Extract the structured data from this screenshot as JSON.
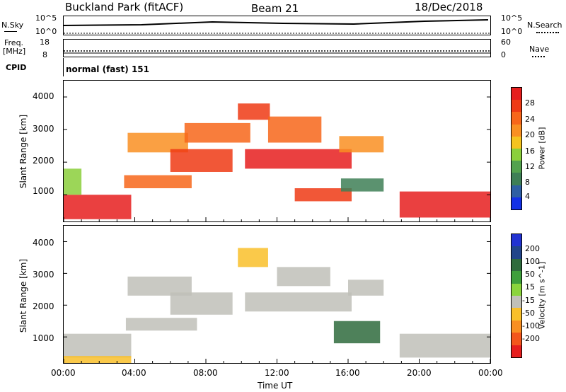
{
  "header": {
    "site": "Buckland Park (fitACF)",
    "beam": "Beam 21",
    "date": "18/Dec/2018"
  },
  "top_panels": {
    "nsky_label": "N.Sky",
    "nsky_ticks": [
      "10^5",
      "10^0"
    ],
    "nsearch_label": "N.Search",
    "nsearch_ticks": [
      "10^5",
      "10^0"
    ],
    "freq_label": "Freq.",
    "freq_unit": "[MHz]",
    "freq_ticks": [
      "18",
      "8"
    ],
    "nave_label": "Nave",
    "nave_ticks": [
      "60",
      "0"
    ],
    "cpid_label": "CPID",
    "cpid_value": "normal (fast) 151"
  },
  "colors": {
    "power": [
      "#e61e1e",
      "#ee3a14",
      "#f7661a",
      "#f98f22",
      "#f5c31f",
      "#8bcf3b",
      "#53a24e",
      "#3e7f56",
      "#2e5fa3",
      "#1230e6"
    ],
    "velocity": [
      "#2233d1",
      "#22458a",
      "#2f6b3d",
      "#3e9f3b",
      "#8ad43c",
      "#c0c0b8",
      "#f9c02a",
      "#f98f22",
      "#f3561c",
      "#e61e1e"
    ]
  },
  "chart_data": [
    {
      "type": "heatmap",
      "name": "power",
      "xlabel": "",
      "ylabel": "Slant Range [km]",
      "xlim": [
        0,
        24
      ],
      "ylim": [
        180,
        4500
      ],
      "yticks": [
        "1000",
        "2000",
        "3000",
        "4000"
      ],
      "colorbar_label": "Power [dB]",
      "colorbar_ticks": [
        "28",
        "24",
        "20",
        "16",
        "12",
        "8",
        "4"
      ],
      "regions": [
        {
          "t0": 0.0,
          "t1": 3.8,
          "r0": 250,
          "r1": 1000,
          "level": 0
        },
        {
          "t0": 0.0,
          "t1": 1.0,
          "r0": 1000,
          "r1": 1800,
          "level": 5
        },
        {
          "t0": 3.4,
          "t1": 7.2,
          "r0": 1200,
          "r1": 1600,
          "level": 2
        },
        {
          "t0": 3.6,
          "t1": 7.0,
          "r0": 2300,
          "r1": 2900,
          "level": 3
        },
        {
          "t0": 6.0,
          "t1": 9.5,
          "r0": 1700,
          "r1": 2400,
          "level": 1
        },
        {
          "t0": 6.8,
          "t1": 10.5,
          "r0": 2600,
          "r1": 3200,
          "level": 2
        },
        {
          "t0": 9.8,
          "t1": 11.6,
          "r0": 3300,
          "r1": 3800,
          "level": 1
        },
        {
          "t0": 10.2,
          "t1": 16.2,
          "r0": 1800,
          "r1": 2400,
          "level": 0
        },
        {
          "t0": 11.5,
          "t1": 14.5,
          "r0": 2600,
          "r1": 3400,
          "level": 2
        },
        {
          "t0": 13.0,
          "t1": 16.2,
          "r0": 800,
          "r1": 1200,
          "level": 1
        },
        {
          "t0": 15.6,
          "t1": 18.0,
          "r0": 1100,
          "r1": 1500,
          "level": 7
        },
        {
          "t0": 15.5,
          "t1": 18.0,
          "r0": 2300,
          "r1": 2800,
          "level": 3
        },
        {
          "t0": 18.9,
          "t1": 24.0,
          "r0": 300,
          "r1": 1100,
          "level": 0
        }
      ]
    },
    {
      "type": "heatmap",
      "name": "velocity",
      "xlabel": "Time UT",
      "ylabel": "Slant Range [km]",
      "xlim": [
        0,
        24
      ],
      "ylim": [
        180,
        4500
      ],
      "xticks": [
        "00:00",
        "04:00",
        "08:00",
        "12:00",
        "16:00",
        "20:00",
        "00:00"
      ],
      "yticks": [
        "1000",
        "2000",
        "3000",
        "4000"
      ],
      "colorbar_label": "Velocity [m s^-1]",
      "colorbar_ticks": [
        "200",
        "100",
        "50",
        "15",
        "-15",
        "-50",
        "-100",
        "-200"
      ],
      "regions": [
        {
          "t0": 0.0,
          "t1": 3.8,
          "r0": 350,
          "r1": 1100,
          "level": 5
        },
        {
          "t0": 0.0,
          "t1": 3.8,
          "r0": 180,
          "r1": 400,
          "level": 6
        },
        {
          "t0": 3.5,
          "t1": 7.5,
          "r0": 1200,
          "r1": 1600,
          "level": 5
        },
        {
          "t0": 3.6,
          "t1": 7.2,
          "r0": 2300,
          "r1": 2900,
          "level": 5
        },
        {
          "t0": 6.0,
          "t1": 9.5,
          "r0": 1700,
          "r1": 2400,
          "level": 5
        },
        {
          "t0": 9.8,
          "t1": 11.5,
          "r0": 3200,
          "r1": 3800,
          "level": 6
        },
        {
          "t0": 10.2,
          "t1": 16.2,
          "r0": 1800,
          "r1": 2400,
          "level": 5
        },
        {
          "t0": 12.0,
          "t1": 15.0,
          "r0": 2600,
          "r1": 3200,
          "level": 5
        },
        {
          "t0": 15.2,
          "t1": 17.8,
          "r0": 800,
          "r1": 1500,
          "level": 2
        },
        {
          "t0": 16.0,
          "t1": 18.0,
          "r0": 2300,
          "r1": 2800,
          "level": 5
        },
        {
          "t0": 18.9,
          "t1": 24.0,
          "r0": 350,
          "r1": 1100,
          "level": 5
        }
      ]
    }
  ]
}
